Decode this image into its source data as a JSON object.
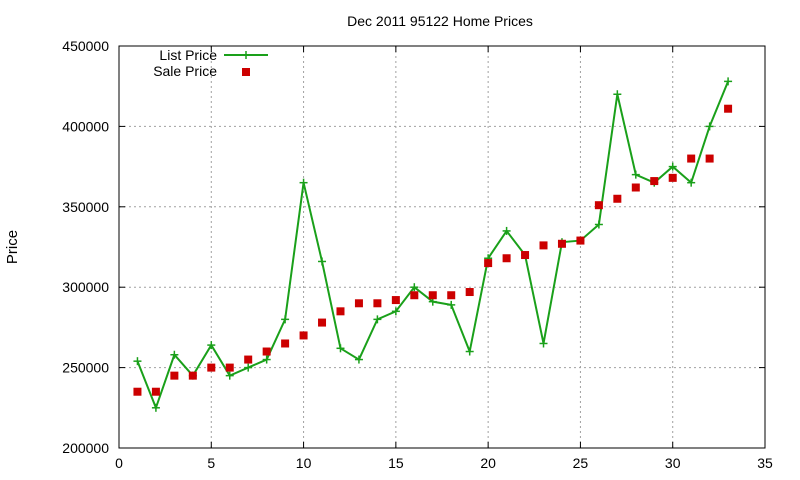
{
  "chart_data": {
    "type": "line",
    "title": "Dec 2011 95122 Home Prices",
    "xlabel": "",
    "ylabel": "Price",
    "xlim": [
      0,
      35
    ],
    "ylim": [
      200000,
      450000
    ],
    "x_ticks": [
      0,
      5,
      10,
      15,
      20,
      25,
      30,
      35
    ],
    "y_ticks": [
      200000,
      250000,
      300000,
      350000,
      400000,
      450000
    ],
    "grid": true,
    "legend_position": "top-left",
    "series": [
      {
        "name": "List Price",
        "style": "line-points",
        "marker": "plus",
        "color": "#1aa01a",
        "x": [
          1,
          2,
          3,
          4,
          5,
          6,
          7,
          8,
          9,
          10,
          11,
          12,
          13,
          14,
          15,
          16,
          17,
          18,
          19,
          20,
          21,
          22,
          23,
          24,
          25,
          26,
          27,
          28,
          29,
          30,
          31,
          32,
          33
        ],
        "values": [
          254000,
          225000,
          258000,
          245000,
          264000,
          245000,
          250000,
          255000,
          280000,
          365000,
          316000,
          262000,
          255000,
          280000,
          285000,
          300000,
          291000,
          289000,
          260000,
          318000,
          335000,
          320000,
          265000,
          328000,
          329000,
          339000,
          420000,
          370000,
          365000,
          375000,
          365000,
          400000,
          428000
        ]
      },
      {
        "name": "Sale Price",
        "style": "points",
        "marker": "square",
        "color": "#cc0000",
        "x": [
          1,
          2,
          3,
          4,
          5,
          6,
          7,
          8,
          9,
          10,
          11,
          12,
          13,
          14,
          15,
          16,
          17,
          18,
          19,
          20,
          21,
          22,
          23,
          24,
          25,
          26,
          27,
          28,
          29,
          30,
          31,
          32,
          33
        ],
        "values": [
          235000,
          235000,
          245000,
          245000,
          250000,
          250000,
          255000,
          260000,
          265000,
          270000,
          278000,
          285000,
          290000,
          290000,
          292000,
          295000,
          295000,
          295000,
          297000,
          315000,
          318000,
          320000,
          326000,
          327000,
          329000,
          351000,
          355000,
          362000,
          366000,
          368000,
          380000,
          380000,
          411000
        ]
      }
    ]
  }
}
